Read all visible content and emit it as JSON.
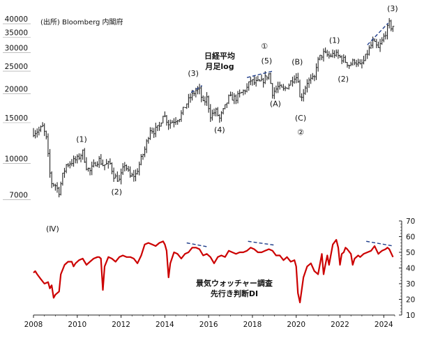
{
  "source_note": "(出所) Bloomberg 内閣府",
  "chart_data": [
    {
      "type": "line",
      "title": "日経平均 月足log",
      "title_lines": [
        "日経平均",
        "月足log"
      ],
      "yscale": "log",
      "y_ticks": [
        40000,
        35000,
        30000,
        25000,
        20000,
        15000,
        10000,
        7000
      ],
      "ylim": [
        6500,
        42000
      ],
      "xlim": [
        2008.0,
        2024.5
      ],
      "series": [
        {
          "values": [
            [
              2008.0,
              13500
            ],
            [
              2008.25,
              13800
            ],
            [
              2008.42,
              14300
            ],
            [
              2008.58,
              12800
            ],
            [
              2008.75,
              9000
            ],
            [
              2008.83,
              8200
            ],
            [
              2009.0,
              8000
            ],
            [
              2009.17,
              7500
            ],
            [
              2009.33,
              8800
            ],
            [
              2009.5,
              9800
            ],
            [
              2009.75,
              10100
            ],
            [
              2010.0,
              10400
            ],
            [
              2010.25,
              11100
            ],
            [
              2010.42,
              9600
            ],
            [
              2010.58,
              9200
            ],
            [
              2010.83,
              10000
            ],
            [
              2011.0,
              10300
            ],
            [
              2011.17,
              9800
            ],
            [
              2011.5,
              9900
            ],
            [
              2011.67,
              8800
            ],
            [
              2011.92,
              8400
            ],
            [
              2012.17,
              9900
            ],
            [
              2012.42,
              8700
            ],
            [
              2012.67,
              8900
            ],
            [
              2012.92,
              10400
            ],
            [
              2013.08,
              11400
            ],
            [
              2013.33,
              14000
            ],
            [
              2013.5,
              13700
            ],
            [
              2013.75,
              14300
            ],
            [
              2013.92,
              16300
            ],
            [
              2014.17,
              14800
            ],
            [
              2014.42,
              15200
            ],
            [
              2014.67,
              15700
            ],
            [
              2014.92,
              17500
            ],
            [
              2015.17,
              19200
            ],
            [
              2015.42,
              20500
            ],
            [
              2015.58,
              20600
            ],
            [
              2015.75,
              18000
            ],
            [
              2015.92,
              19000
            ],
            [
              2016.08,
              16000
            ],
            [
              2016.33,
              16700
            ],
            [
              2016.5,
              15500
            ],
            [
              2016.75,
              17400
            ],
            [
              2016.92,
              19100
            ],
            [
              2017.25,
              19000
            ],
            [
              2017.5,
              20000
            ],
            [
              2017.75,
              21000
            ],
            [
              2017.92,
              22700
            ],
            [
              2018.08,
              22100
            ],
            [
              2018.42,
              22300
            ],
            [
              2018.75,
              24100
            ],
            [
              2018.92,
              20000
            ],
            [
              2019.17,
              21200
            ],
            [
              2019.42,
              20600
            ],
            [
              2019.67,
              21800
            ],
            [
              2019.92,
              23600
            ],
            [
              2020.08,
              23200
            ],
            [
              2020.17,
              18900
            ],
            [
              2020.33,
              20200
            ],
            [
              2020.5,
              22300
            ],
            [
              2020.83,
              23100
            ],
            [
              2020.92,
              26400
            ],
            [
              2021.08,
              28500
            ],
            [
              2021.25,
              29600
            ],
            [
              2021.5,
              28800
            ],
            [
              2021.75,
              29500
            ],
            [
              2021.92,
              28800
            ],
            [
              2022.17,
              27800
            ],
            [
              2022.42,
              26400
            ],
            [
              2022.67,
              27600
            ],
            [
              2022.92,
              26100
            ],
            [
              2023.08,
              27400
            ],
            [
              2023.33,
              30800
            ],
            [
              2023.5,
              33200
            ],
            [
              2023.75,
              31000
            ],
            [
              2023.92,
              33500
            ],
            [
              2024.08,
              36300
            ],
            [
              2024.25,
              39800
            ],
            [
              2024.33,
              38400
            ],
            [
              2024.42,
              38900
            ]
          ]
        }
      ],
      "annotations": [
        {
          "text": "(1)",
          "x": 2010.2,
          "y": 12300
        },
        {
          "text": "(2)",
          "x": 2011.8,
          "y": 7300
        },
        {
          "text": "(3)",
          "x": 2015.3,
          "y": 23700
        },
        {
          "text": "(4)",
          "x": 2016.5,
          "y": 13500
        },
        {
          "text": "(5)",
          "x": 2018.65,
          "y": 26800
        },
        {
          "text": "①",
          "x": 2018.55,
          "y": 31000
        },
        {
          "text": "(A)",
          "x": 2019.05,
          "y": 17500
        },
        {
          "text": "(B)",
          "x": 2020.05,
          "y": 26500
        },
        {
          "text": "(C)",
          "x": 2020.2,
          "y": 15200
        },
        {
          "text": "②",
          "x": 2020.2,
          "y": 13200
        },
        {
          "text": "(1)",
          "x": 2021.75,
          "y": 32900
        },
        {
          "text": "(2)",
          "x": 2022.15,
          "y": 22400
        },
        {
          "text": "(3)",
          "x": 2024.4,
          "y": 45000
        }
      ],
      "trend_lines": [
        [
          [
            2015.2,
            20100
          ],
          [
            2015.7,
            21500
          ]
        ],
        [
          [
            2017.75,
            23300
          ],
          [
            2018.9,
            24800
          ]
        ],
        [
          [
            2023.25,
            32200
          ],
          [
            2024.2,
            40000
          ]
        ]
      ]
    },
    {
      "type": "line",
      "title": "景気ウォッチャー調査 先行き判断DI",
      "title_lines": [
        "景気ウォッチャー調査",
        "先行き判断DI"
      ],
      "panel_label": "(Ⅳ)",
      "y_ticks": [
        10,
        20,
        30,
        40,
        50,
        60,
        70
      ],
      "ylim": [
        10,
        70
      ],
      "x_ticks": [
        2008,
        2010,
        2012,
        2014,
        2016,
        2018,
        2020,
        2022,
        2024
      ],
      "xlim": [
        2008.0,
        2024.5
      ],
      "series": [
        {
          "color": "#cc0000",
          "values": [
            [
              2008.0,
              37
            ],
            [
              2008.08,
              38
            ],
            [
              2008.17,
              36
            ],
            [
              2008.33,
              33
            ],
            [
              2008.5,
              30
            ],
            [
              2008.67,
              31
            ],
            [
              2008.75,
              27
            ],
            [
              2008.83,
              29
            ],
            [
              2008.92,
              21
            ],
            [
              2009.0,
              23
            ],
            [
              2009.17,
              25
            ],
            [
              2009.25,
              36
            ],
            [
              2009.42,
              42
            ],
            [
              2009.58,
              44
            ],
            [
              2009.75,
              44
            ],
            [
              2009.83,
              41
            ],
            [
              2009.92,
              43
            ],
            [
              2010.08,
              45
            ],
            [
              2010.25,
              46
            ],
            [
              2010.42,
              42
            ],
            [
              2010.58,
              44
            ],
            [
              2010.75,
              46
            ],
            [
              2010.92,
              47
            ],
            [
              2011.0,
              47
            ],
            [
              2011.08,
              46
            ],
            [
              2011.17,
              26
            ],
            [
              2011.25,
              41
            ],
            [
              2011.42,
              47
            ],
            [
              2011.58,
              46
            ],
            [
              2011.75,
              44
            ],
            [
              2011.92,
              47
            ],
            [
              2012.08,
              48
            ],
            [
              2012.25,
              47
            ],
            [
              2012.42,
              47
            ],
            [
              2012.58,
              46
            ],
            [
              2012.75,
              43
            ],
            [
              2012.92,
              48
            ],
            [
              2013.08,
              55
            ],
            [
              2013.25,
              56
            ],
            [
              2013.42,
              55
            ],
            [
              2013.58,
              54
            ],
            [
              2013.75,
              56
            ],
            [
              2013.92,
              57
            ],
            [
              2014.0,
              55
            ],
            [
              2014.08,
              51
            ],
            [
              2014.17,
              34
            ],
            [
              2014.25,
              43
            ],
            [
              2014.42,
              50
            ],
            [
              2014.58,
              49
            ],
            [
              2014.75,
              46
            ],
            [
              2014.92,
              49
            ],
            [
              2015.08,
              50
            ],
            [
              2015.25,
              53
            ],
            [
              2015.42,
              53
            ],
            [
              2015.58,
              52
            ],
            [
              2015.75,
              48
            ],
            [
              2015.92,
              49
            ],
            [
              2016.08,
              47
            ],
            [
              2016.25,
              43
            ],
            [
              2016.42,
              47
            ],
            [
              2016.58,
              48
            ],
            [
              2016.75,
              47
            ],
            [
              2016.92,
              51
            ],
            [
              2017.08,
              50
            ],
            [
              2017.25,
              49
            ],
            [
              2017.42,
              50
            ],
            [
              2017.58,
              50
            ],
            [
              2017.75,
              51
            ],
            [
              2017.92,
              53
            ],
            [
              2018.08,
              52
            ],
            [
              2018.25,
              50
            ],
            [
              2018.42,
              50
            ],
            [
              2018.58,
              51
            ],
            [
              2018.75,
              52
            ],
            [
              2018.92,
              51
            ],
            [
              2019.08,
              48
            ],
            [
              2019.25,
              48
            ],
            [
              2019.42,
              45
            ],
            [
              2019.58,
              47
            ],
            [
              2019.75,
              44
            ],
            [
              2019.92,
              45
            ],
            [
              2020.0,
              41
            ],
            [
              2020.08,
              24
            ],
            [
              2020.17,
              18
            ],
            [
              2020.33,
              34
            ],
            [
              2020.5,
              41
            ],
            [
              2020.67,
              43
            ],
            [
              2020.83,
              38
            ],
            [
              2020.92,
              37
            ],
            [
              2021.0,
              36
            ],
            [
              2021.08,
              42
            ],
            [
              2021.17,
              49
            ],
            [
              2021.25,
              36
            ],
            [
              2021.33,
              42
            ],
            [
              2021.42,
              48
            ],
            [
              2021.5,
              42
            ],
            [
              2021.58,
              48
            ],
            [
              2021.67,
              55
            ],
            [
              2021.83,
              58
            ],
            [
              2021.92,
              53
            ],
            [
              2022.0,
              42
            ],
            [
              2022.08,
              49
            ],
            [
              2022.17,
              50
            ],
            [
              2022.25,
              53
            ],
            [
              2022.33,
              52
            ],
            [
              2022.5,
              49
            ],
            [
              2022.58,
              42
            ],
            [
              2022.67,
              46
            ],
            [
              2022.83,
              48
            ],
            [
              2022.92,
              47
            ],
            [
              2023.08,
              49
            ],
            [
              2023.25,
              50
            ],
            [
              2023.42,
              51
            ],
            [
              2023.58,
              54
            ],
            [
              2023.75,
              49
            ],
            [
              2023.83,
              50
            ],
            [
              2023.92,
              51
            ],
            [
              2024.08,
              52
            ],
            [
              2024.17,
              53
            ],
            [
              2024.25,
              52
            ],
            [
              2024.42,
              47
            ]
          ]
        }
      ],
      "trend_lines": [
        [
          [
            2015.0,
            56
          ],
          [
            2015.95,
            53.5
          ]
        ],
        [
          [
            2017.8,
            57
          ],
          [
            2019.05,
            54.5
          ]
        ],
        [
          [
            2023.2,
            57
          ],
          [
            2024.45,
            54
          ]
        ]
      ]
    }
  ]
}
